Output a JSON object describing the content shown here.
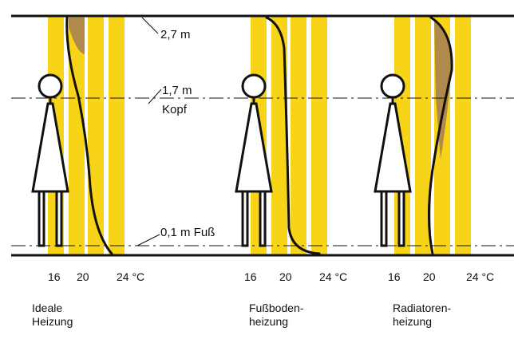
{
  "height_labels": {
    "ceiling": "2,7 m",
    "head_height": "1,7 m",
    "head_word": "Kopf",
    "foot": "0,1 m Fuß"
  },
  "panels": [
    {
      "ticks": [
        "16",
        "20",
        "24 °C"
      ],
      "caption_line1": "Ideale",
      "caption_line2": "Heizung"
    },
    {
      "ticks": [
        "16",
        "20",
        "24 °C"
      ],
      "caption_line1": "Fußboden-",
      "caption_line2": "heizung"
    },
    {
      "ticks": [
        "16",
        "20",
        "24 °C"
      ],
      "caption_line1": "Radiatoren-",
      "caption_line2": "heizung"
    }
  ],
  "colors": {
    "band_yellow": "#f7d417",
    "shade_brown": "#b08a4a",
    "line_black": "#111111"
  }
}
